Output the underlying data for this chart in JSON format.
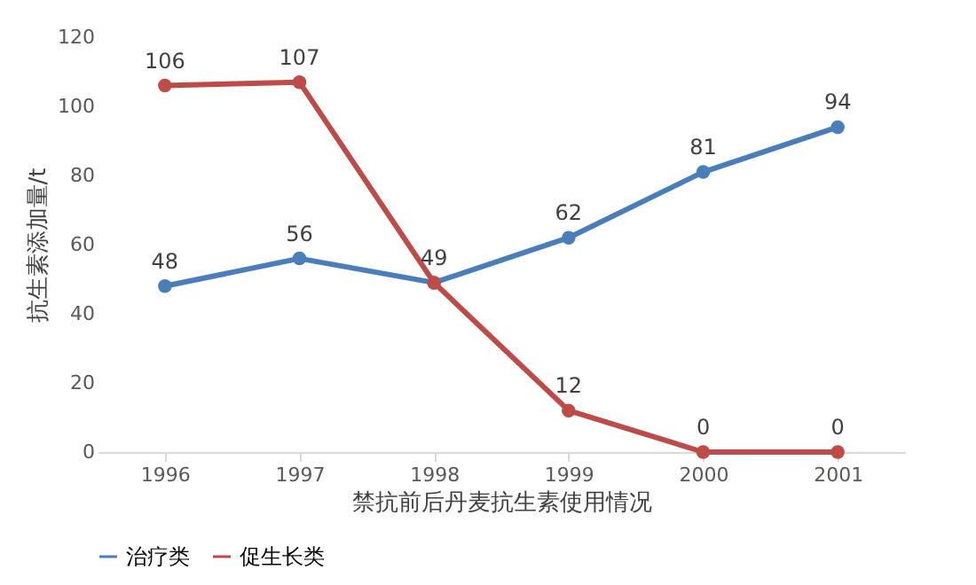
{
  "chart_data": {
    "type": "line",
    "xlabel": "禁抗前后丹麦抗生素使用情况",
    "ylabel": "抗生素添加量/t",
    "categories": [
      "1996",
      "1997",
      "1998",
      "1999",
      "2000",
      "2001"
    ],
    "series": [
      {
        "name": "治疗类",
        "color": "#4a7ebb",
        "values": [
          48,
          56,
          49,
          62,
          81,
          94
        ],
        "value_labels": [
          "48",
          "56",
          "49",
          "62",
          "81",
          "94"
        ]
      },
      {
        "name": "促生长类",
        "color": "#be4b48",
        "values": [
          106,
          107,
          49,
          12,
          0,
          0
        ],
        "value_labels": [
          "106",
          "107",
          null,
          "12",
          "0",
          "0"
        ]
      }
    ],
    "ylim": [
      0,
      120
    ],
    "yticks": [
      0,
      20,
      40,
      60,
      80,
      100,
      120
    ],
    "grid": false,
    "legend": "bottom",
    "marker": "circle",
    "line_style": "solid"
  }
}
